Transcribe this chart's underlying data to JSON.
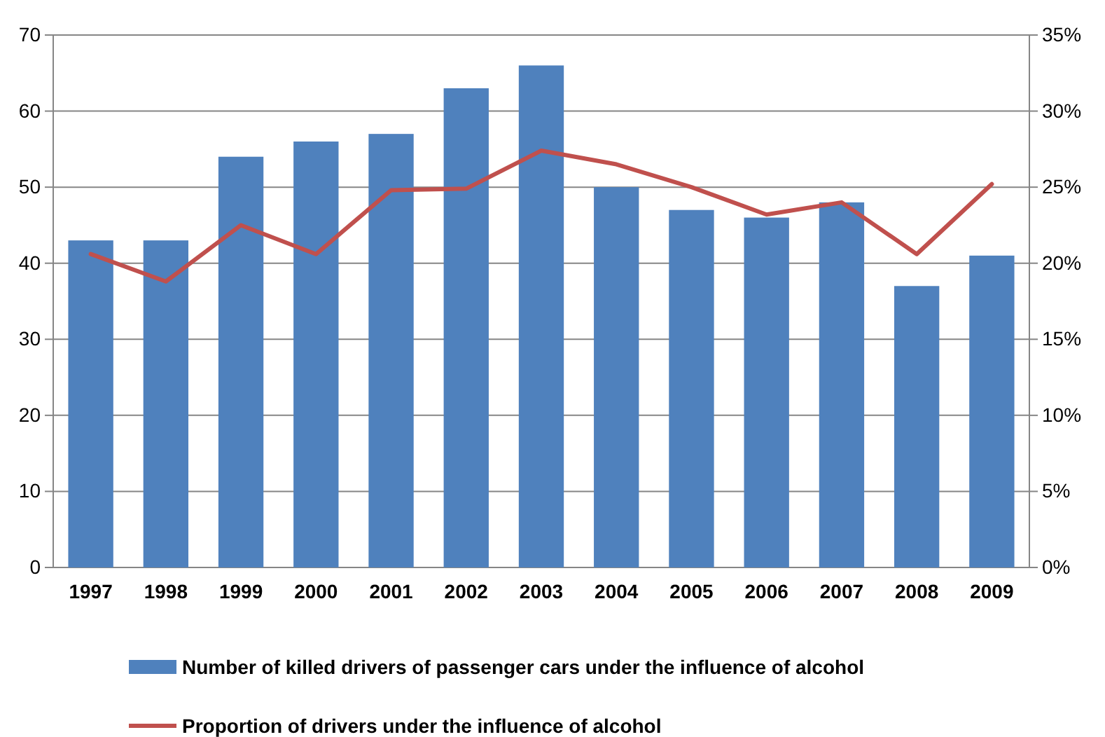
{
  "chart_data": {
    "type": "bar",
    "categories": [
      "1997",
      "1998",
      "1999",
      "2000",
      "2001",
      "2002",
      "2003",
      "2004",
      "2005",
      "2006",
      "2007",
      "2008",
      "2009"
    ],
    "series": [
      {
        "name": "Number of killed drivers of passenger cars under the influence of alcohol",
        "color": "#4f81bd",
        "values": [
          43,
          43,
          54,
          56,
          57,
          63,
          66,
          50,
          47,
          46,
          48,
          37,
          41
        ]
      },
      {
        "name": "Proportion of drivers under the influence of alcohol",
        "type": "line",
        "axis": "y2",
        "color": "#c0504d",
        "values": [
          20.6,
          18.8,
          22.5,
          20.6,
          24.8,
          24.9,
          27.4,
          26.5,
          25,
          23.2,
          24,
          20.6,
          25.2
        ]
      }
    ],
    "ylim": [
      0,
      70
    ],
    "yticks": [
      0,
      10,
      20,
      30,
      40,
      50,
      60,
      70
    ],
    "y2lim": [
      0,
      35
    ],
    "y2ticks": [
      {
        "value": 0,
        "label": "0%"
      },
      {
        "value": 5,
        "label": "5%"
      },
      {
        "value": 10,
        "label": "10%"
      },
      {
        "value": 15,
        "label": "15%"
      },
      {
        "value": 20,
        "label": "20%"
      },
      {
        "value": 25,
        "label": "25%"
      },
      {
        "value": 30,
        "label": "30%"
      },
      {
        "value": 35,
        "label": "35%"
      }
    ],
    "grid": "y",
    "legend": "bottom",
    "marker": "none"
  }
}
